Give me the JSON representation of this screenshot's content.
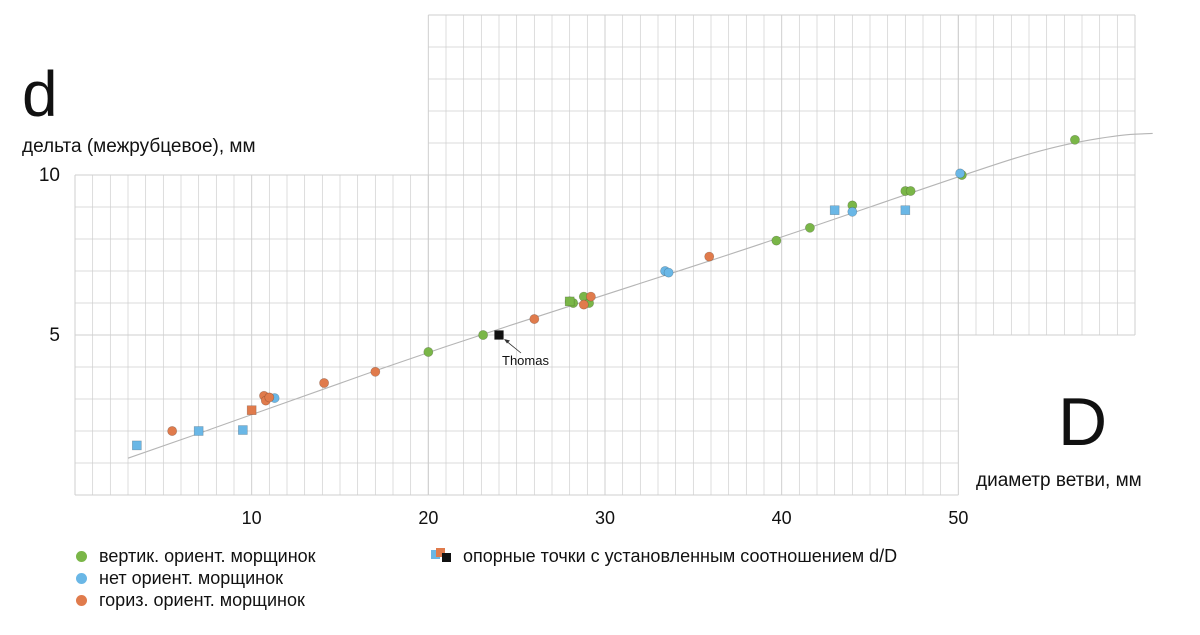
{
  "chart_data": {
    "type": "scatter",
    "title": "",
    "y_symbol": "d",
    "x_symbol": "D",
    "ylabel": "дельта (межрубцевое), мм",
    "xlabel": "диаметр ветви, мм",
    "x_ticks": [
      "10",
      "20",
      "30",
      "40",
      "50"
    ],
    "y_ticks": [
      "5",
      "10"
    ],
    "xlim": [
      0,
      60
    ],
    "ylim": [
      0,
      15
    ],
    "grid": true,
    "legend_position": "bottom",
    "colors": {
      "vertical": "#7ab648",
      "none": "#6ab7e6",
      "horizontal": "#e07b4c",
      "reference_black": "#111111",
      "fit_curve": "#b5b5b5",
      "grid": "#cfcfcf"
    },
    "series": [
      {
        "name": "вертик. ориент. морщинок",
        "marker": "circle",
        "color": "#7ab648",
        "points": [
          [
            20.0,
            4.47
          ],
          [
            23.1,
            5.0
          ],
          [
            28.0,
            6.05
          ],
          [
            28.2,
            6.0
          ],
          [
            28.8,
            6.2
          ],
          [
            29.1,
            6.0
          ],
          [
            39.7,
            7.95
          ],
          [
            41.6,
            8.35
          ],
          [
            44.0,
            9.05
          ],
          [
            47.0,
            9.5
          ],
          [
            47.3,
            9.5
          ],
          [
            50.2,
            10.0
          ],
          [
            56.6,
            11.1
          ]
        ]
      },
      {
        "name": "нет ориент. морщинок",
        "marker": "circle",
        "color": "#6ab7e6",
        "points": [
          [
            11.3,
            3.03
          ],
          [
            33.4,
            7.0
          ],
          [
            33.6,
            6.95
          ],
          [
            44.0,
            8.85
          ],
          [
            50.1,
            10.05
          ]
        ]
      },
      {
        "name": "гориз. ориент. морщинок",
        "marker": "circle",
        "color": "#e07b4c",
        "points": [
          [
            5.5,
            2.0
          ],
          [
            10.7,
            3.1
          ],
          [
            10.8,
            2.95
          ],
          [
            11.0,
            3.05
          ],
          [
            14.1,
            3.5
          ],
          [
            17.0,
            3.85
          ],
          [
            26.0,
            5.5
          ],
          [
            28.8,
            5.95
          ],
          [
            29.2,
            6.2
          ],
          [
            35.9,
            7.45
          ]
        ]
      },
      {
        "name": "опорные точки с установленным соотношением d/D",
        "marker": "square",
        "points": [
          {
            "x": 3.5,
            "y": 1.55,
            "color": "#6ab7e6"
          },
          {
            "x": 7.0,
            "y": 2.0,
            "color": "#6ab7e6"
          },
          {
            "x": 9.5,
            "y": 2.03,
            "color": "#6ab7e6"
          },
          {
            "x": 10.0,
            "y": 2.65,
            "color": "#e07b4c"
          },
          {
            "x": 24.0,
            "y": 5.0,
            "color": "#111111",
            "label": "Thomas"
          },
          {
            "x": 28.0,
            "y": 6.05,
            "color": "#7ab648"
          },
          {
            "x": 43.0,
            "y": 8.9,
            "color": "#6ab7e6"
          },
          {
            "x": 47.0,
            "y": 8.9,
            "color": "#6ab7e6"
          }
        ]
      }
    ],
    "fit_curve": [
      [
        3,
        1.15
      ],
      [
        10,
        2.5
      ],
      [
        20,
        4.48
      ],
      [
        30,
        6.25
      ],
      [
        40,
        8.05
      ],
      [
        50,
        9.95
      ],
      [
        55,
        10.85
      ],
      [
        59,
        11.25
      ],
      [
        61,
        11.3
      ]
    ]
  },
  "legend": {
    "items": [
      {
        "label": "вертик. ориент. морщинок",
        "color": "#7ab648"
      },
      {
        "label": "нет ориент. морщинок",
        "color": "#6ab7e6"
      },
      {
        "label": "гориз. ориент. морщинок",
        "color": "#e07b4c"
      }
    ],
    "reference_label": "опорные точки с установленным соотношением d/D",
    "reference_colors": [
      "#6ab7e6",
      "#e07b4c",
      "#111111"
    ]
  }
}
